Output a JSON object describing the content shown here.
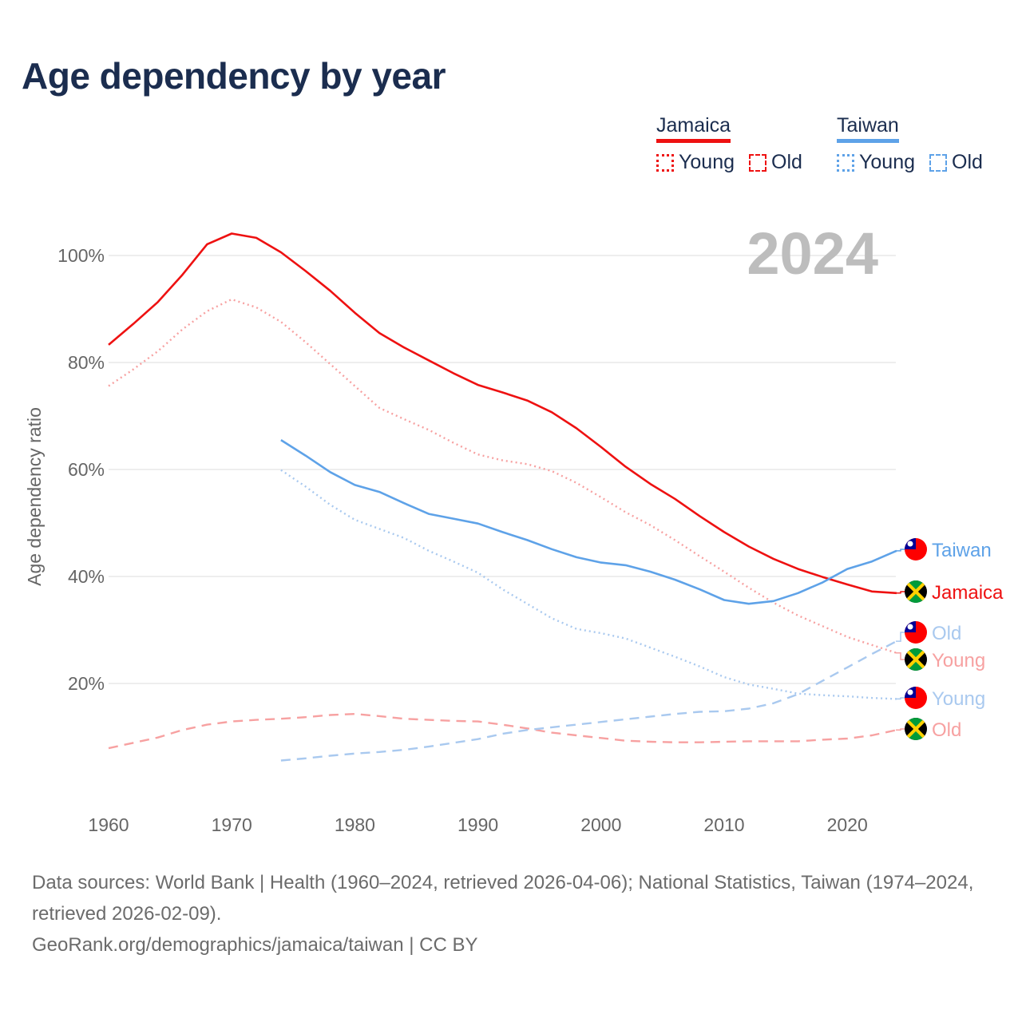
{
  "title": "Age dependency by year",
  "legend": {
    "groups": [
      {
        "country": "Jamaica",
        "color": "#ee1111",
        "light_color": "#f7a1a1",
        "items": [
          "Young",
          "Old"
        ]
      },
      {
        "country": "Taiwan",
        "color": "#5ea2e8",
        "light_color": "#a9c9ef",
        "items": [
          "Young",
          "Old"
        ]
      }
    ]
  },
  "footer": {
    "sources": "Data sources: World Bank | Health (1960–2024, retrieved 2026-04-06); National Statistics, Taiwan (1974–2024, retrieved 2026-02-09).",
    "link": "GeoRank.org/demographics/jamaica/taiwan | CC BY"
  },
  "chart_data": {
    "type": "line",
    "title": "Age dependency by year",
    "current_year_label": "2024",
    "xlabel": "",
    "ylabel": "Age dependency ratio",
    "xlim": [
      1960,
      2024
    ],
    "ylim": [
      0,
      105
    ],
    "x_ticks": [
      "1960",
      "1970",
      "1980",
      "1990",
      "2000",
      "2010",
      "2020"
    ],
    "y_ticks": [
      {
        "value": 20,
        "label": "20%"
      },
      {
        "value": 40,
        "label": "40%"
      },
      {
        "value": 60,
        "label": "60%"
      },
      {
        "value": 80,
        "label": "80%"
      },
      {
        "value": 100,
        "label": "100%"
      }
    ],
    "grid": true,
    "legend_position": "top-right",
    "series": [
      {
        "name": "Jamaica",
        "end_label": "Jamaica",
        "style": "solid",
        "color": "#ee1111",
        "flag": "jamaica",
        "start": 1960,
        "step": 2,
        "values": [
          83.3,
          87.2,
          91.3,
          96.4,
          102.1,
          104.1,
          103.3,
          100.6,
          97.1,
          93.4,
          89.3,
          85.5,
          82.8,
          80.4,
          78.0,
          75.8,
          74.4,
          72.9,
          70.7,
          67.7,
          64.2,
          60.5,
          57.3,
          54.5,
          51.3,
          48.3,
          45.6,
          43.3,
          41.4,
          39.9,
          38.5,
          37.2,
          36.9
        ]
      },
      {
        "name": "Jamaica Young",
        "end_label": "Young",
        "style": "dotted",
        "color": "#f7a1a1",
        "flag": "jamaica",
        "start": 1960,
        "step": 2,
        "values": [
          75.6,
          78.7,
          82.1,
          86.2,
          89.6,
          91.8,
          90.3,
          87.6,
          83.8,
          79.7,
          75.6,
          71.5,
          69.4,
          67.4,
          65.0,
          62.8,
          61.7,
          61.0,
          59.7,
          57.5,
          54.8,
          52.0,
          49.6,
          46.8,
          43.8,
          40.9,
          37.9,
          35.1,
          32.7,
          30.7,
          28.7,
          27.2,
          25.7
        ]
      },
      {
        "name": "Jamaica Old",
        "end_label": "Old",
        "style": "dashed",
        "color": "#f7a1a1",
        "flag": "jamaica",
        "start": 1960,
        "step": 2,
        "values": [
          7.9,
          8.9,
          9.9,
          11.3,
          12.3,
          12.9,
          13.2,
          13.4,
          13.7,
          14.1,
          14.3,
          13.9,
          13.4,
          13.2,
          13.0,
          12.9,
          12.3,
          11.6,
          10.8,
          10.3,
          9.8,
          9.3,
          9.1,
          9.0,
          9.0,
          9.1,
          9.2,
          9.2,
          9.2,
          9.5,
          9.7,
          10.3,
          11.3
        ]
      },
      {
        "name": "Taiwan",
        "end_label": "Taiwan",
        "style": "solid",
        "color": "#5ea2e8",
        "flag": "taiwan",
        "start": 1974,
        "step": 2,
        "values": [
          65.5,
          62.6,
          59.5,
          57.1,
          55.8,
          53.7,
          51.7,
          50.8,
          49.9,
          48.3,
          46.8,
          45.1,
          43.6,
          42.6,
          42.1,
          40.9,
          39.4,
          37.6,
          35.6,
          34.9,
          35.4,
          36.9,
          38.9,
          41.4,
          42.8,
          44.8
        ]
      },
      {
        "name": "Taiwan Young",
        "end_label": "Young",
        "style": "dotted",
        "color": "#a9c9ef",
        "flag": "taiwan",
        "start": 1974,
        "step": 2,
        "values": [
          59.9,
          56.8,
          53.4,
          50.6,
          48.9,
          47.2,
          44.8,
          42.8,
          40.7,
          37.6,
          34.9,
          32.2,
          30.2,
          29.4,
          28.4,
          26.7,
          25.0,
          23.2,
          21.2,
          19.8,
          19.0,
          18.1,
          17.8,
          17.6,
          17.3,
          17.1
        ]
      },
      {
        "name": "Taiwan Old",
        "end_label": "Old",
        "style": "dashed",
        "color": "#a9c9ef",
        "flag": "taiwan",
        "start": 1974,
        "step": 2,
        "values": [
          5.6,
          6.0,
          6.5,
          6.9,
          7.2,
          7.6,
          8.2,
          8.9,
          9.6,
          10.6,
          11.3,
          11.8,
          12.3,
          12.8,
          13.3,
          13.8,
          14.3,
          14.7,
          14.8,
          15.3,
          16.3,
          18.0,
          20.5,
          23.0,
          25.5,
          27.9
        ]
      }
    ]
  }
}
